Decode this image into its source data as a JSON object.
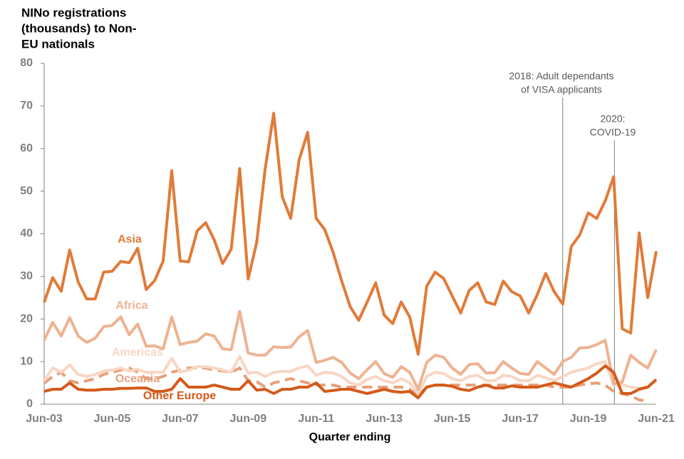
{
  "chart_data": {
    "type": "line",
    "y_label_lines": [
      "NINo registrations",
      "(thousands) to Non-",
      "EU nationals"
    ],
    "x_label": "Quarter ending",
    "categories": [
      "Jun-03",
      null,
      null,
      null,
      null,
      null,
      null,
      null,
      "Jun-05",
      null,
      null,
      null,
      null,
      null,
      null,
      null,
      "Jun-07",
      null,
      null,
      null,
      null,
      null,
      null,
      null,
      "Jun-09",
      null,
      null,
      null,
      null,
      null,
      null,
      null,
      "Jun-11",
      null,
      null,
      null,
      null,
      null,
      null,
      null,
      "Jun-13",
      null,
      null,
      null,
      null,
      null,
      null,
      null,
      "Jun-15",
      null,
      null,
      null,
      null,
      null,
      null,
      null,
      "Jun-17",
      null,
      null,
      null,
      null,
      null,
      null,
      null,
      "Jun-19",
      null,
      null,
      null,
      null,
      null,
      null,
      null,
      "Jun-21"
    ],
    "ylim": [
      0,
      80
    ],
    "yticks": [
      0,
      10,
      20,
      30,
      40,
      50,
      60,
      70,
      80
    ],
    "grid": false,
    "series": [
      {
        "name": "Asia",
        "color": "#e07b39",
        "dash": false,
        "values": [
          23.9,
          29.7,
          26.5,
          36.2,
          28.7,
          24.7,
          24.7,
          31,
          31.2,
          33.5,
          33.2,
          36.6,
          26.9,
          29,
          33.6,
          54.8,
          33.6,
          33.4,
          40.7,
          42.6,
          38.6,
          33,
          36.4,
          55.3,
          29.4,
          38,
          55.3,
          68.3,
          48.7,
          43.6,
          57.4,
          63.8,
          43.6,
          41,
          35.6,
          28.9,
          22.9,
          19.7,
          24,
          28.5,
          20.9,
          18.9,
          24,
          20.5,
          11.7,
          27.7,
          31,
          29.5,
          25.4,
          21.4,
          26.7,
          28.5,
          24,
          23.4,
          28.9,
          26.4,
          25.4,
          21.4,
          25.7,
          30.7,
          26.4,
          23.5,
          37,
          39.7,
          44.9,
          43.6,
          47.7,
          53.4,
          17.7,
          16.7,
          40.2,
          25,
          35.9
        ]
      },
      {
        "name": "Africa",
        "color": "#efb291",
        "dash": false,
        "values": [
          15,
          19.2,
          16,
          20.3,
          16,
          14.5,
          15.5,
          18.2,
          18.5,
          20.5,
          16.3,
          18.8,
          13.6,
          13.7,
          13,
          20.5,
          14,
          14.5,
          14.8,
          16.5,
          16,
          13,
          12.8,
          21.8,
          12,
          11.5,
          11.5,
          13.5,
          13.3,
          13.4,
          15.8,
          17.3,
          9.8,
          10.3,
          11,
          9.8,
          7.3,
          6,
          8.1,
          10,
          7.2,
          6.3,
          8.8,
          7.5,
          3.5,
          9.8,
          11.5,
          11,
          8.5,
          7,
          9.3,
          9.5,
          7.3,
          7.4,
          10,
          8.5,
          7.2,
          7,
          10,
          8.5,
          7,
          10,
          11,
          13.2,
          13.3,
          14,
          15,
          4.8,
          5.2,
          11.5,
          9.8,
          8.5,
          12.8
        ]
      },
      {
        "name": "Americas",
        "color": "#f9d6c3",
        "dash": false,
        "values": [
          5.5,
          8.5,
          7.5,
          9.2,
          7,
          6.5,
          7,
          7.8,
          8,
          8.5,
          7.8,
          8.2,
          7.5,
          7.5,
          7.5,
          10.8,
          7.5,
          8,
          8.8,
          8.8,
          8.5,
          8,
          7.5,
          11.2,
          7.3,
          7.5,
          6.5,
          7.5,
          7.7,
          7.7,
          8.5,
          9,
          6.8,
          7.5,
          7.3,
          6.5,
          5,
          4.5,
          5.8,
          6.5,
          5.5,
          5,
          6,
          5,
          2.5,
          6.5,
          7.5,
          7.2,
          6,
          5.5,
          6.5,
          6.8,
          5.5,
          5.5,
          6.8,
          6.5,
          5.5,
          5.5,
          6.8,
          6.2,
          5.5,
          6.5,
          7.5,
          8,
          8.5,
          9.5,
          10,
          4.5,
          4.5,
          4,
          3.8,
          4,
          5.5
        ]
      },
      {
        "name": "Oceania",
        "color": "#e6a07a",
        "dash": true,
        "values": [
          5,
          6.5,
          7.5,
          5.5,
          5,
          5.5,
          6,
          7,
          7.5,
          8,
          8.5,
          7.5,
          6,
          6,
          6.5,
          7.5,
          8,
          8.5,
          8.5,
          8.5,
          8,
          7.8,
          7.5,
          8.5,
          5.5,
          5.3,
          4,
          5,
          5.5,
          6,
          5.5,
          5,
          4.5,
          4.5,
          4.5,
          4,
          4,
          4,
          4,
          4,
          4,
          4,
          4,
          3.5,
          2,
          4,
          4.5,
          4.5,
          4.5,
          4.5,
          4.5,
          4.5,
          4.5,
          4.5,
          4.5,
          4.5,
          4.5,
          4.5,
          4.5,
          4.5,
          4,
          4,
          4,
          4.5,
          4.8,
          5,
          4.5,
          3,
          2.5,
          2,
          1,
          0.8,
          null
        ]
      },
      {
        "name": "Other Europe",
        "color": "#d45a1a",
        "dash": false,
        "values": [
          3,
          3.5,
          3.5,
          5,
          3.5,
          3.3,
          3.3,
          3.5,
          3.5,
          3.7,
          3.7,
          3.8,
          3.8,
          3,
          3,
          3.5,
          6,
          4,
          4,
          4,
          4.5,
          4,
          3.5,
          3.5,
          5.5,
          3.3,
          3.5,
          2.5,
          3.5,
          3.5,
          4,
          4,
          5,
          3,
          3.2,
          3.5,
          3.5,
          3,
          2.5,
          3,
          3.5,
          3,
          2.8,
          3,
          1.5,
          4,
          4.5,
          4.5,
          4.2,
          3.5,
          3.2,
          4,
          4.5,
          3.8,
          3.8,
          4.3,
          4,
          4,
          4,
          4.5,
          5,
          4.5,
          4,
          5,
          6,
          7.3,
          9,
          7.5,
          2.5,
          2.5,
          3.5,
          4,
          5.8
        ]
      }
    ],
    "annotations": [
      {
        "lines": [
          "2018: Adult dependants",
          "of VISA applicants"
        ]
      },
      {
        "lines": [
          "2020:",
          "COVID-19"
        ]
      }
    ]
  }
}
